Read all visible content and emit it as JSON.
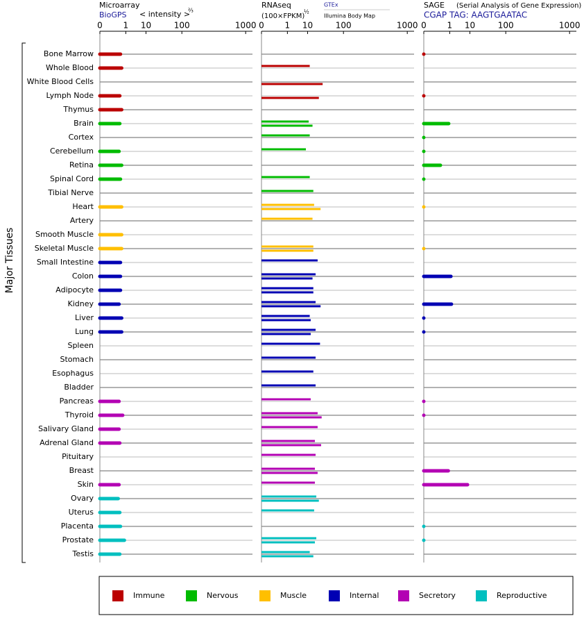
{
  "chart_data": {
    "type": "bar",
    "ylabel": "Major Tissues",
    "xscale": "pow",
    "xexponent": 0.25,
    "xlim": [
      0,
      1200
    ],
    "xticks": [
      0,
      1,
      10,
      100,
      1000
    ],
    "groups": [
      {
        "name": "Immune",
        "color": "#bb0000",
        "categories": [
          "Bone Marrow",
          "Whole Blood",
          "White Blood Cells",
          "Lymph Node",
          "Thymus"
        ]
      },
      {
        "name": "Nervous",
        "color": "#00bb00",
        "categories": [
          "Brain",
          "Cortex",
          "Cerebellum",
          "Retina",
          "Spinal Cord",
          "Tibial Nerve"
        ]
      },
      {
        "name": "Muscle",
        "color": "#ffbf00",
        "categories": [
          "Heart",
          "Artery",
          "Smooth Muscle",
          "Skeletal Muscle"
        ]
      },
      {
        "name": "Internal",
        "color": "#0000b3",
        "categories": [
          "Small Intestine",
          "Colon",
          "Adipocyte",
          "Kidney",
          "Liver",
          "Lung",
          "Spleen",
          "Stomach",
          "Esophagus",
          "Bladder"
        ]
      },
      {
        "name": "Secretory",
        "color": "#b300b3",
        "categories": [
          "Pancreas",
          "Thyroid",
          "Salivary Gland",
          "Adrenal Gland",
          "Pituitary",
          "Breast",
          "Skin"
        ]
      },
      {
        "name": "Reproductive",
        "color": "#00bfbf",
        "categories": [
          "Ovary",
          "Uterus",
          "Placenta",
          "Prostate",
          "Testis"
        ]
      }
    ],
    "panels": [
      {
        "title": "Microarray",
        "subtitle": "BioGPS",
        "scale_label": "< intensity >",
        "scale_exponent": "⅔",
        "values": [
          0.4,
          0.5,
          null,
          0.35,
          0.5,
          0.35,
          null,
          0.3,
          0.5,
          0.4,
          null,
          0.5,
          null,
          0.5,
          0.5,
          0.4,
          0.4,
          0.4,
          0.3,
          0.5,
          0.5,
          null,
          null,
          null,
          null,
          0.3,
          0.6,
          0.3,
          0.35,
          null,
          null,
          0.3,
          0.25,
          0.35,
          0.4,
          0.8,
          0.35
        ]
      },
      {
        "title": "RNAseq",
        "scale_label": "(100×FPKM)",
        "scale_exponent": "½",
        "series": [
          {
            "name": "GTEx",
            "values": [
              null,
              12,
              null,
              null,
              null,
              11,
              12,
              8.6,
              null,
              12,
              16,
              17,
              15,
              null,
              16,
              22,
              19,
              16,
              19,
              12,
              19,
              26,
              19,
              16,
              19,
              13,
              22,
              22,
              18,
              19,
              18,
              18,
              20,
              17,
              null,
              20,
              12
            ]
          },
          {
            "name": "Illumina Body Map",
            "values": [
              null,
              null,
              31,
              24,
              null,
              15,
              null,
              null,
              null,
              null,
              null,
              27,
              null,
              null,
              16,
              null,
              15,
              16,
              27,
              13,
              13,
              null,
              null,
              null,
              null,
              null,
              29,
              null,
              28,
              null,
              22,
              null,
              24,
              null,
              null,
              18,
              16
            ]
          }
        ]
      },
      {
        "title": "SAGE",
        "note": "(Serial Analysis of Gene Expression)",
        "subtitle": "CGAP TAG: AAGTGAATAC",
        "values": [
          0,
          null,
          null,
          0,
          null,
          0.85,
          0,
          0,
          0.17,
          0,
          null,
          0,
          null,
          null,
          0,
          null,
          1.2,
          null,
          1.3,
          0,
          0,
          null,
          null,
          null,
          null,
          0,
          0,
          null,
          null,
          null,
          0.8,
          8.1,
          null,
          null,
          0,
          0,
          null
        ]
      }
    ]
  }
}
